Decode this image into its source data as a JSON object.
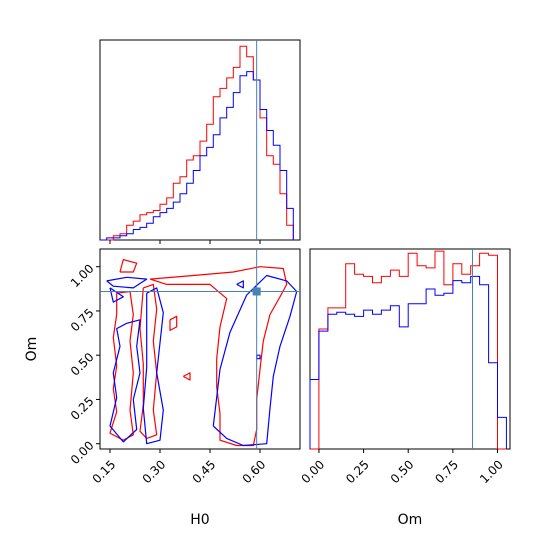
{
  "chart_data": {
    "type": "corner",
    "parameters": [
      "H0",
      "Om"
    ],
    "truth": {
      "H0": 0.59,
      "Om": 0.86
    },
    "colors": {
      "red": "#ff0000",
      "blue": "#0000ff",
      "truth": "#4682b4"
    },
    "panels": [
      {
        "id": "hist-H0",
        "type": "step-histogram",
        "xlim": [
          0.12,
          0.72
        ],
        "xticks": [
          0.15,
          0.3,
          0.45,
          0.6
        ],
        "bin_edges": [
          0.12,
          0.14,
          0.16,
          0.18,
          0.2,
          0.22,
          0.24,
          0.26,
          0.28,
          0.3,
          0.32,
          0.34,
          0.36,
          0.38,
          0.4,
          0.42,
          0.44,
          0.46,
          0.48,
          0.5,
          0.52,
          0.54,
          0.56,
          0.58,
          0.6,
          0.62,
          0.64,
          0.66,
          0.68,
          0.7
        ],
        "series": [
          {
            "color": "red",
            "values": [
              0,
              0,
              0.02,
              0.03,
              0.07,
              0.09,
              0.12,
              0.13,
              0.14,
              0.17,
              0.2,
              0.27,
              0.3,
              0.38,
              0.4,
              0.47,
              0.55,
              0.68,
              0.72,
              0.77,
              0.82,
              0.92,
              0.87,
              0.76,
              0.58,
              0.4,
              0.36,
              0.22,
              0.07
            ]
          },
          {
            "color": "blue",
            "values": [
              0,
              0.01,
              0.01,
              0.02,
              0.03,
              0.05,
              0.06,
              0.08,
              0.11,
              0.13,
              0.15,
              0.18,
              0.22,
              0.27,
              0.33,
              0.4,
              0.44,
              0.5,
              0.58,
              0.63,
              0.7,
              0.78,
              0.8,
              0.76,
              0.62,
              0.52,
              0.45,
              0.33,
              0.15
            ]
          }
        ]
      },
      {
        "id": "hist-Om",
        "type": "step-histogram",
        "xlim": [
          -0.05,
          1.07
        ],
        "xticks": [
          0.0,
          0.25,
          0.5,
          0.75,
          1.0
        ],
        "bin_edges": [
          -0.05,
          0.0,
          0.05,
          0.1,
          0.15,
          0.2,
          0.25,
          0.3,
          0.35,
          0.4,
          0.45,
          0.5,
          0.55,
          0.6,
          0.65,
          0.7,
          0.75,
          0.8,
          0.85,
          0.9,
          0.95,
          1.0,
          1.05
        ],
        "series": [
          {
            "color": "red",
            "values": [
              0,
              0.57,
              0.67,
              0.67,
              0.88,
              0.83,
              0.82,
              0.79,
              0.82,
              0.85,
              0.82,
              0.93,
              0.87,
              0.86,
              0.94,
              0.78,
              0.88,
              0.83,
              0.87,
              0.93,
              0.92,
              0
            ]
          },
          {
            "color": "blue",
            "values": [
              0.33,
              0.56,
              0.64,
              0.65,
              0.64,
              0.63,
              0.66,
              0.64,
              0.66,
              0.68,
              0.58,
              0.69,
              0.69,
              0.76,
              0.73,
              0.74,
              0.8,
              0.79,
              0.82,
              0.78,
              0.41,
              0.15
            ]
          }
        ]
      },
      {
        "id": "contour-H0-Om",
        "type": "contour",
        "x_param": "H0",
        "y_param": "Om",
        "xlim": [
          0.12,
          0.72
        ],
        "ylim": [
          -0.03,
          1.1
        ],
        "xticks": [
          0.15,
          0.3,
          0.45,
          0.6
        ],
        "yticks": [
          0.0,
          0.25,
          0.5,
          0.75,
          1.0
        ],
        "series": [
          {
            "color": "red",
            "contours": [
              [
                [
                  0.18,
                  0.97
                ],
                [
                  0.22,
                  0.97
                ],
                [
                  0.23,
                  1.02
                ],
                [
                  0.19,
                  1.04
                ],
                [
                  0.18,
                  0.97
                ]
              ],
              [
                [
                  0.27,
                  0.93
                ],
                [
                  0.4,
                  0.95
                ],
                [
                  0.52,
                  0.97
                ],
                [
                  0.6,
                  1.0
                ],
                [
                  0.67,
                  0.99
                ],
                [
                  0.68,
                  0.9
                ],
                [
                  0.66,
                  0.83
                ],
                [
                  0.63,
                  0.73
                ],
                [
                  0.61,
                  0.58
                ],
                [
                  0.6,
                  0.42
                ],
                [
                  0.59,
                  0.25
                ],
                [
                  0.59,
                  0.08
                ],
                [
                  0.58,
                  -0.01
                ],
                [
                  0.53,
                  -0.01
                ],
                [
                  0.48,
                  0.02
                ],
                [
                  0.48,
                  0.17
                ],
                [
                  0.47,
                  0.32
                ],
                [
                  0.47,
                  0.48
                ],
                [
                  0.48,
                  0.66
                ],
                [
                  0.5,
                  0.82
                ],
                [
                  0.45,
                  0.9
                ],
                [
                  0.32,
                  0.9
                ],
                [
                  0.27,
                  0.93
                ]
              ],
              [
                [
                  0.17,
                  0.85
                ],
                [
                  0.21,
                  0.86
                ],
                [
                  0.22,
                  0.73
                ],
                [
                  0.21,
                  0.58
                ],
                [
                  0.22,
                  0.4
                ],
                [
                  0.21,
                  0.19
                ],
                [
                  0.22,
                  0.05
                ],
                [
                  0.19,
                  0.02
                ],
                [
                  0.15,
                  0.06
                ],
                [
                  0.17,
                  0.18
                ],
                [
                  0.16,
                  0.31
                ],
                [
                  0.17,
                  0.44
                ],
                [
                  0.16,
                  0.6
                ],
                [
                  0.17,
                  0.73
                ],
                [
                  0.17,
                  0.85
                ]
              ],
              [
                [
                  0.25,
                  0.88
                ],
                [
                  0.28,
                  0.9
                ],
                [
                  0.29,
                  0.76
                ],
                [
                  0.28,
                  0.58
                ],
                [
                  0.29,
                  0.4
                ],
                [
                  0.28,
                  0.19
                ],
                [
                  0.29,
                  0.05
                ],
                [
                  0.26,
                  0.03
                ],
                [
                  0.24,
                  0.07
                ],
                [
                  0.25,
                  0.22
                ],
                [
                  0.25,
                  0.45
                ],
                [
                  0.24,
                  0.65
                ],
                [
                  0.25,
                  0.88
                ]
              ],
              [
                [
                  0.33,
                  0.7
                ],
                [
                  0.35,
                  0.72
                ],
                [
                  0.35,
                  0.66
                ],
                [
                  0.33,
                  0.64
                ],
                [
                  0.33,
                  0.7
                ]
              ],
              [
                [
                  0.37,
                  0.38
                ],
                [
                  0.39,
                  0.4
                ],
                [
                  0.39,
                  0.36
                ],
                [
                  0.37,
                  0.38
                ]
              ]
            ]
          },
          {
            "color": "blue",
            "contours": [
              [
                [
                  0.14,
                  0.92
                ],
                [
                  0.2,
                  0.94
                ],
                [
                  0.26,
                  0.93
                ],
                [
                  0.22,
                  0.88
                ],
                [
                  0.16,
                  0.89
                ],
                [
                  0.14,
                  0.92
                ]
              ],
              [
                [
                  0.15,
                  0.88
                ],
                [
                  0.19,
                  0.83
                ],
                [
                  0.16,
                  0.8
                ],
                [
                  0.15,
                  0.88
                ]
              ],
              [
                [
                  0.2,
                  0.68
                ],
                [
                  0.24,
                  0.7
                ],
                [
                  0.23,
                  0.55
                ],
                [
                  0.24,
                  0.4
                ],
                [
                  0.22,
                  0.25
                ],
                [
                  0.23,
                  0.08
                ],
                [
                  0.19,
                  0.01
                ],
                [
                  0.15,
                  0.1
                ],
                [
                  0.17,
                  0.26
                ],
                [
                  0.16,
                  0.4
                ],
                [
                  0.18,
                  0.55
                ],
                [
                  0.17,
                  0.65
                ],
                [
                  0.2,
                  0.68
                ]
              ],
              [
                [
                  0.26,
                  0.85
                ],
                [
                  0.29,
                  0.88
                ],
                [
                  0.31,
                  0.74
                ],
                [
                  0.3,
                  0.57
                ],
                [
                  0.29,
                  0.4
                ],
                [
                  0.31,
                  0.19
                ],
                [
                  0.3,
                  0.02
                ],
                [
                  0.26,
                  0.0
                ],
                [
                  0.25,
                  0.2
                ],
                [
                  0.26,
                  0.43
                ],
                [
                  0.26,
                  0.65
                ],
                [
                  0.26,
                  0.85
                ]
              ],
              [
                [
                  0.46,
                  0.1
                ],
                [
                  0.48,
                  0.42
                ],
                [
                  0.51,
                  0.63
                ],
                [
                  0.56,
                  0.84
                ],
                [
                  0.62,
                  0.95
                ],
                [
                  0.68,
                  0.92
                ],
                [
                  0.71,
                  0.86
                ],
                [
                  0.69,
                  0.72
                ],
                [
                  0.66,
                  0.55
                ],
                [
                  0.64,
                  0.38
                ],
                [
                  0.63,
                  0.2
                ],
                [
                  0.62,
                  0.0
                ],
                [
                  0.55,
                  -0.01
                ],
                [
                  0.5,
                  0.03
                ],
                [
                  0.46,
                  0.1
                ]
              ],
              [
                [
                  0.53,
                  0.9
                ],
                [
                  0.55,
                  0.92
                ],
                [
                  0.55,
                  0.88
                ],
                [
                  0.53,
                  0.9
                ]
              ],
              [
                [
                  0.59,
                  0.5
                ],
                [
                  0.6,
                  0.5
                ],
                [
                  0.6,
                  0.48
                ],
                [
                  0.59,
                  0.48
                ],
                [
                  0.59,
                  0.5
                ]
              ]
            ]
          }
        ]
      }
    ],
    "axis_labels": {
      "x": [
        "H0",
        "Om"
      ],
      "y": [
        "Om"
      ]
    },
    "grid": false,
    "legend": "none"
  }
}
